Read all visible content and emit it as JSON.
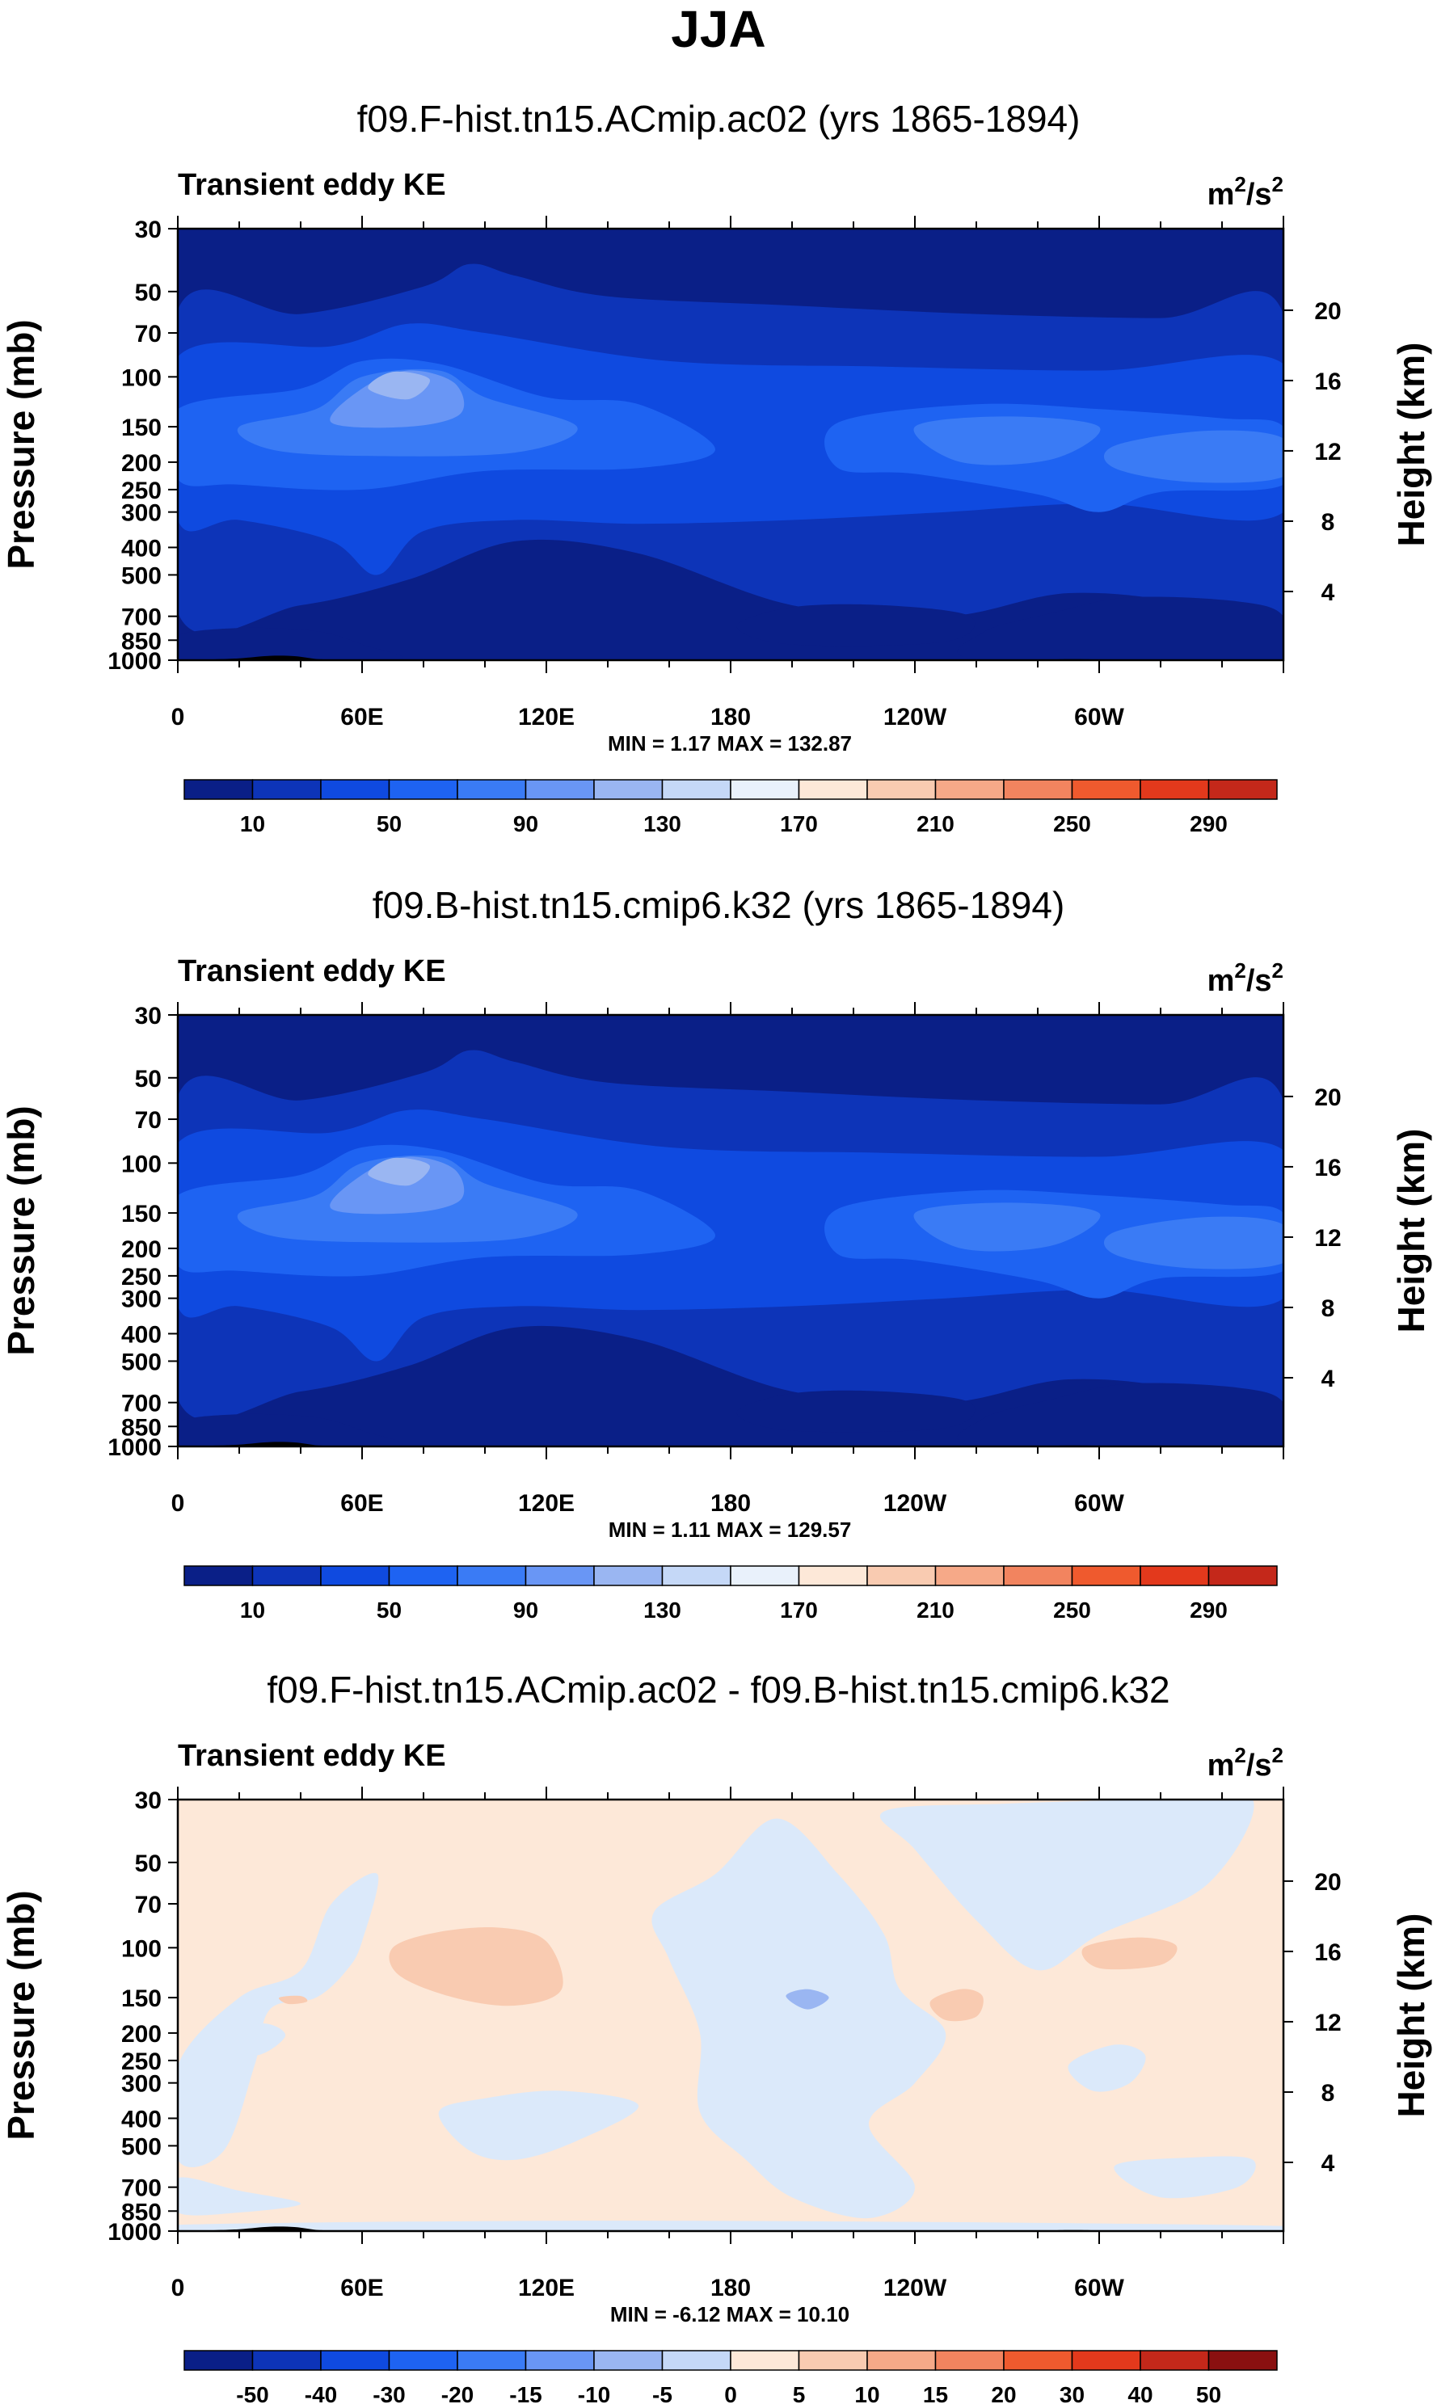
{
  "figure": {
    "title": "JJA",
    "units": "m²/s²"
  },
  "colors": {
    "main_scale": [
      "#0a1f87",
      "#0d34b8",
      "#0f4ae0",
      "#1e63f2",
      "#3a7bf5",
      "#6996f5",
      "#9ab6f2",
      "#c5d8f7",
      "#e9f1fb",
      "#fde8d8",
      "#f9cbb1",
      "#f6a988",
      "#f2845f",
      "#ef5a2e",
      "#e3391c",
      "#c4281a",
      "#8a1010"
    ],
    "diff_scale": [
      "#0a1f87",
      "#0d34b8",
      "#0f4ae0",
      "#1e63f2",
      "#3a7bf5",
      "#6996f5",
      "#9ab6f2",
      "#c5d8f7",
      "#dbe9fa",
      "#fde8d8",
      "#f9cbb1",
      "#f6a988",
      "#f2845f",
      "#ef5a2e",
      "#e3391c",
      "#c4281a",
      "#8a1010"
    ],
    "land": "#000000"
  },
  "chart_data": [
    {
      "type": "heatmap",
      "title": "f09.F-hist.tn15.ACmip.ac02 (yrs 1865-1894)",
      "subtitle": "Transient eddy KE",
      "units_label": "m",
      "units_sup1": "2",
      "units_mid": "/s",
      "units_sup2": "2",
      "ylabel": "Pressure (mb)",
      "ylabel_right": "Height (km)",
      "x_ticks": [
        {
          "lon": 0,
          "label": "0"
        },
        {
          "lon": 60,
          "label": "60E"
        },
        {
          "lon": 120,
          "label": "120E"
        },
        {
          "lon": 180,
          "label": "180"
        },
        {
          "lon": 240,
          "label": "120W"
        },
        {
          "lon": 300,
          "label": "60W"
        }
      ],
      "xlim": [
        0,
        360
      ],
      "y_ticks": [
        30,
        50,
        70,
        100,
        150,
        200,
        250,
        300,
        400,
        500,
        700,
        850,
        1000
      ],
      "ylim_mb": [
        30,
        1000
      ],
      "y_right_ticks": [
        20,
        16,
        12,
        8,
        4
      ],
      "min_max": "MIN =   1.17  MAX = 132.87",
      "min": 1.17,
      "max": 132.87,
      "colorbar_labels": [
        "10",
        "50",
        "90",
        "130",
        "170",
        "210",
        "250",
        "290"
      ],
      "field": "main"
    },
    {
      "type": "heatmap",
      "title": "f09.B-hist.tn15.cmip6.k32 (yrs 1865-1894)",
      "subtitle": "Transient eddy KE",
      "units_label": "m",
      "units_sup1": "2",
      "units_mid": "/s",
      "units_sup2": "2",
      "ylabel": "Pressure (mb)",
      "ylabel_right": "Height (km)",
      "x_ticks": [
        {
          "lon": 0,
          "label": "0"
        },
        {
          "lon": 60,
          "label": "60E"
        },
        {
          "lon": 120,
          "label": "120E"
        },
        {
          "lon": 180,
          "label": "180"
        },
        {
          "lon": 240,
          "label": "120W"
        },
        {
          "lon": 300,
          "label": "60W"
        }
      ],
      "xlim": [
        0,
        360
      ],
      "y_ticks": [
        30,
        50,
        70,
        100,
        150,
        200,
        250,
        300,
        400,
        500,
        700,
        850,
        1000
      ],
      "ylim_mb": [
        30,
        1000
      ],
      "y_right_ticks": [
        20,
        16,
        12,
        8,
        4
      ],
      "min_max": "MIN =   1.11  MAX = 129.57",
      "min": 1.11,
      "max": 129.57,
      "colorbar_labels": [
        "10",
        "50",
        "90",
        "130",
        "170",
        "210",
        "250",
        "290"
      ],
      "field": "main"
    },
    {
      "type": "heatmap",
      "title": "f09.F-hist.tn15.ACmip.ac02 - f09.B-hist.tn15.cmip6.k32",
      "subtitle": "Transient eddy KE",
      "units_label": "m",
      "units_sup1": "2",
      "units_mid": "/s",
      "units_sup2": "2",
      "ylabel": "Pressure (mb)",
      "ylabel_right": "Height (km)",
      "x_ticks": [
        {
          "lon": 0,
          "label": "0"
        },
        {
          "lon": 60,
          "label": "60E"
        },
        {
          "lon": 120,
          "label": "120E"
        },
        {
          "lon": 180,
          "label": "180"
        },
        {
          "lon": 240,
          "label": "120W"
        },
        {
          "lon": 300,
          "label": "60W"
        }
      ],
      "xlim": [
        0,
        360
      ],
      "y_ticks": [
        30,
        50,
        70,
        100,
        150,
        200,
        250,
        300,
        400,
        500,
        700,
        850,
        1000
      ],
      "ylim_mb": [
        30,
        1000
      ],
      "y_right_ticks": [
        20,
        16,
        12,
        8,
        4
      ],
      "min_max": "MIN =  -6.12  MAX =  10.10",
      "min": -6.12,
      "max": 10.1,
      "colorbar_labels": [
        "-50",
        "-40",
        "-30",
        "-20",
        "-15",
        "-10",
        "-5",
        "0",
        "5",
        "10",
        "15",
        "20",
        "30",
        "40",
        "50"
      ],
      "field": "diff"
    }
  ]
}
